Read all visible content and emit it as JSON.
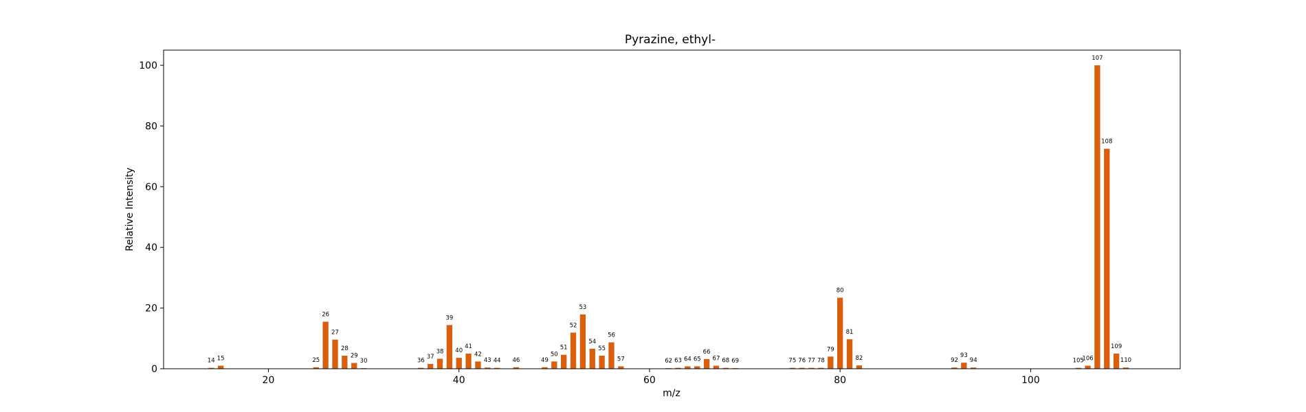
{
  "chart_data": {
    "type": "bar",
    "title": "Pyrazine, ethyl-",
    "xlabel": "m/z",
    "ylabel": "Relative Intensity",
    "xlim": [
      9,
      115.7
    ],
    "ylim": [
      0,
      105
    ],
    "xticks": [
      20,
      40,
      60,
      80,
      100
    ],
    "yticks": [
      0,
      20,
      40,
      60,
      80,
      100
    ],
    "grid": false,
    "bar_color": "#d95f0e",
    "x": [
      14,
      15,
      25,
      26,
      27,
      28,
      29,
      30,
      36,
      37,
      38,
      39,
      40,
      41,
      42,
      43,
      44,
      46,
      49,
      50,
      51,
      52,
      53,
      54,
      55,
      56,
      57,
      62,
      63,
      64,
      65,
      66,
      67,
      68,
      69,
      75,
      76,
      77,
      78,
      79,
      80,
      81,
      82,
      92,
      93,
      94,
      105,
      106,
      107,
      108,
      109,
      110
    ],
    "values": [
      0.3,
      1.0,
      0.5,
      15.5,
      9.6,
      4.3,
      1.9,
      0.2,
      0.3,
      1.6,
      3.3,
      14.4,
      3.6,
      5.0,
      2.4,
      0.4,
      0.3,
      0.5,
      0.5,
      2.4,
      4.6,
      11.9,
      17.9,
      6.6,
      4.3,
      8.7,
      0.8,
      0.2,
      0.3,
      0.8,
      0.8,
      3.2,
      1.0,
      0.3,
      0.2,
      0.3,
      0.3,
      0.3,
      0.3,
      4.0,
      23.4,
      9.7,
      1.1,
      0.4,
      2.0,
      0.4,
      0.3,
      1.0,
      100.0,
      72.5,
      5.0,
      0.4
    ],
    "labels": [
      "14",
      "15",
      "25",
      "26",
      "27",
      "28",
      "29",
      "30",
      "36",
      "37",
      "38",
      "39",
      "40",
      "41",
      "42",
      "43",
      "44",
      "46",
      "49",
      "50",
      "51",
      "52",
      "53",
      "54",
      "55",
      "56",
      "57",
      "62",
      "63",
      "64",
      "65",
      "66",
      "67",
      "68",
      "69",
      "75",
      "76",
      "77",
      "78",
      "79",
      "80",
      "81",
      "82",
      "92",
      "93",
      "94",
      "105",
      "106",
      "107",
      "108",
      "109",
      "110"
    ]
  }
}
